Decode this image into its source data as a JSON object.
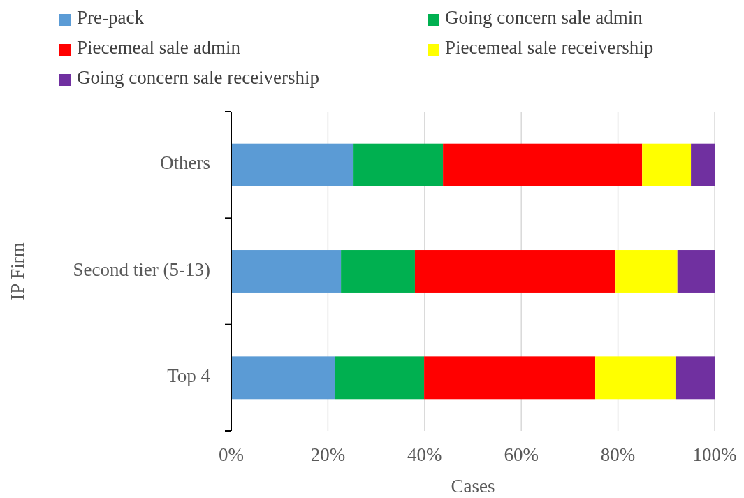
{
  "chart_data": {
    "type": "bar",
    "orientation": "horizontal",
    "stacked": true,
    "xlabel": "Cases",
    "ylabel": "IP Firm",
    "categories": [
      "Others",
      "Second tier (5-13)",
      "Top 4"
    ],
    "series": [
      {
        "name": "Pre-pack",
        "color": "#5b9bd5",
        "values": [
          25.3,
          22.7,
          21.5
        ]
      },
      {
        "name": "Going concern sale admin",
        "color": "#00b050",
        "values": [
          18.5,
          15.3,
          18.4
        ]
      },
      {
        "name": "Piecemeal sale admin",
        "color": "#ff0000",
        "values": [
          41.2,
          41.5,
          35.4
        ]
      },
      {
        "name": "Piecemeal sale receivership",
        "color": "#ffff00",
        "values": [
          10.1,
          12.8,
          16.6
        ]
      },
      {
        "name": "Going concern sale receivership",
        "color": "#7030a0",
        "values": [
          4.9,
          7.7,
          8.1
        ]
      }
    ],
    "xlim": [
      0,
      100
    ],
    "xticks": [
      {
        "value": 0,
        "label": "0%"
      },
      {
        "value": 20,
        "label": "20%"
      },
      {
        "value": 40,
        "label": "40%"
      },
      {
        "value": 60,
        "label": "60%"
      },
      {
        "value": 80,
        "label": "80%"
      },
      {
        "value": 100,
        "label": "100%"
      }
    ],
    "grid": "x",
    "legend": "top"
  }
}
